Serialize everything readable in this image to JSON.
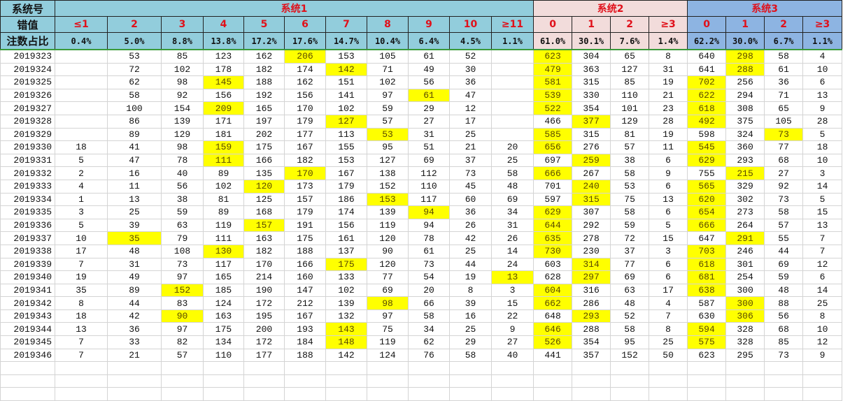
{
  "header": {
    "label_system": "系统号",
    "label_error": "错值",
    "label_ratio": "注数占比",
    "groups": [
      {
        "title": "系统1",
        "columns": [
          "≤1",
          "2",
          "3",
          "4",
          "5",
          "6",
          "7",
          "8",
          "9",
          "10",
          "≥11"
        ],
        "ratios": [
          "0.4%",
          "5.0%",
          "8.8%",
          "13.8%",
          "17.2%",
          "17.6%",
          "14.7%",
          "10.4%",
          "6.4%",
          "4.5%",
          "1.1%"
        ]
      },
      {
        "title": "系统2",
        "columns": [
          "0",
          "1",
          "2",
          "≥3"
        ],
        "ratios": [
          "61.0%",
          "30.1%",
          "7.6%",
          "1.4%"
        ]
      },
      {
        "title": "系统3",
        "columns": [
          "0",
          "1",
          "2",
          "≥3"
        ],
        "ratios": [
          "62.2%",
          "30.0%",
          "6.7%",
          "1.1%"
        ]
      }
    ]
  },
  "colors": {
    "header": "#92CDDC",
    "system2": "#F2DCDB",
    "system3": "#8DB4E2",
    "highlight": "#FFFF00",
    "header_text": "#E0101A"
  },
  "rows": [
    {
      "period": "2019323",
      "values": [
        "",
        53,
        85,
        123,
        162,
        206,
        153,
        105,
        61,
        52,
        "",
        623,
        304,
        65,
        8,
        640,
        298,
        58,
        4
      ],
      "highlight": [
        5,
        11,
        16
      ]
    },
    {
      "period": "2019324",
      "values": [
        "",
        72,
        102,
        178,
        182,
        174,
        142,
        71,
        49,
        30,
        "",
        479,
        363,
        127,
        31,
        641,
        288,
        61,
        10
      ],
      "highlight": [
        6,
        11,
        16
      ]
    },
    {
      "period": "2019325",
      "values": [
        "",
        62,
        98,
        145,
        188,
        162,
        151,
        102,
        56,
        36,
        "",
        581,
        315,
        85,
        19,
        702,
        256,
        36,
        6
      ],
      "highlight": [
        3,
        11,
        15
      ]
    },
    {
      "period": "2019326",
      "values": [
        "",
        58,
        92,
        156,
        192,
        156,
        141,
        97,
        61,
        47,
        "",
        539,
        330,
        110,
        21,
        622,
        294,
        71,
        13
      ],
      "highlight": [
        8,
        11,
        15
      ]
    },
    {
      "period": "2019327",
      "values": [
        "",
        100,
        154,
        209,
        165,
        170,
        102,
        59,
        29,
        12,
        "",
        522,
        354,
        101,
        23,
        618,
        308,
        65,
        9
      ],
      "highlight": [
        3,
        11,
        15
      ]
    },
    {
      "period": "2019328",
      "values": [
        "",
        86,
        139,
        171,
        197,
        179,
        127,
        57,
        27,
        17,
        "",
        466,
        377,
        129,
        28,
        492,
        375,
        105,
        28
      ],
      "highlight": [
        6,
        12,
        15
      ]
    },
    {
      "period": "2019329",
      "values": [
        "",
        89,
        129,
        181,
        202,
        177,
        113,
        53,
        31,
        25,
        "",
        585,
        315,
        81,
        19,
        598,
        324,
        73,
        5
      ],
      "highlight": [
        7,
        11,
        17
      ]
    },
    {
      "period": "2019330",
      "values": [
        18,
        41,
        98,
        159,
        175,
        167,
        155,
        95,
        51,
        21,
        20,
        656,
        276,
        57,
        11,
        545,
        360,
        77,
        18
      ],
      "highlight": [
        3,
        11,
        15
      ]
    },
    {
      "period": "2019331",
      "values": [
        5,
        47,
        78,
        111,
        166,
        182,
        153,
        127,
        69,
        37,
        25,
        697,
        259,
        38,
        6,
        629,
        293,
        68,
        10
      ],
      "highlight": [
        3,
        12,
        15
      ]
    },
    {
      "period": "2019332",
      "values": [
        2,
        16,
        40,
        89,
        135,
        170,
        167,
        138,
        112,
        73,
        58,
        666,
        267,
        58,
        9,
        755,
        215,
        27,
        3
      ],
      "highlight": [
        5,
        11,
        16
      ]
    },
    {
      "period": "2019333",
      "values": [
        4,
        11,
        56,
        102,
        120,
        173,
        179,
        152,
        110,
        45,
        48,
        701,
        240,
        53,
        6,
        565,
        329,
        92,
        14
      ],
      "highlight": [
        4,
        12,
        15
      ]
    },
    {
      "period": "2019334",
      "values": [
        1,
        13,
        38,
        81,
        125,
        157,
        186,
        153,
        117,
        60,
        69,
        597,
        315,
        75,
        13,
        620,
        302,
        73,
        5
      ],
      "highlight": [
        7,
        12,
        15
      ]
    },
    {
      "period": "2019335",
      "values": [
        3,
        25,
        59,
        89,
        168,
        179,
        174,
        139,
        94,
        36,
        34,
        629,
        307,
        58,
        6,
        654,
        273,
        58,
        15
      ],
      "highlight": [
        8,
        11,
        15
      ]
    },
    {
      "period": "2019336",
      "values": [
        5,
        39,
        63,
        119,
        157,
        191,
        156,
        119,
        94,
        26,
        31,
        644,
        292,
        59,
        5,
        666,
        264,
        57,
        13
      ],
      "highlight": [
        4,
        11,
        15
      ]
    },
    {
      "period": "2019337",
      "values": [
        10,
        35,
        79,
        111,
        163,
        175,
        161,
        120,
        78,
        42,
        26,
        635,
        278,
        72,
        15,
        647,
        291,
        55,
        7
      ],
      "highlight": [
        1,
        11,
        16
      ]
    },
    {
      "period": "2019338",
      "values": [
        17,
        48,
        108,
        130,
        182,
        188,
        137,
        90,
        61,
        25,
        14,
        730,
        230,
        37,
        3,
        703,
        246,
        44,
        7
      ],
      "highlight": [
        3,
        11,
        15
      ]
    },
    {
      "period": "2019339",
      "values": [
        7,
        31,
        73,
        117,
        170,
        166,
        175,
        120,
        73,
        44,
        24,
        603,
        314,
        77,
        6,
        618,
        301,
        69,
        12
      ],
      "highlight": [
        6,
        12,
        15
      ]
    },
    {
      "period": "2019340",
      "values": [
        19,
        49,
        97,
        165,
        214,
        160,
        133,
        77,
        54,
        19,
        13,
        628,
        297,
        69,
        6,
        681,
        254,
        59,
        6
      ],
      "highlight": [
        10,
        12,
        15
      ]
    },
    {
      "period": "2019341",
      "values": [
        35,
        89,
        152,
        185,
        190,
        147,
        102,
        69,
        20,
        8,
        3,
        604,
        316,
        63,
        17,
        638,
        300,
        48,
        14
      ],
      "highlight": [
        2,
        11,
        15
      ]
    },
    {
      "period": "2019342",
      "values": [
        8,
        44,
        83,
        124,
        172,
        212,
        139,
        98,
        66,
        39,
        15,
        662,
        286,
        48,
        4,
        587,
        300,
        88,
        25
      ],
      "highlight": [
        7,
        11,
        16
      ]
    },
    {
      "period": "2019343",
      "values": [
        18,
        42,
        90,
        163,
        195,
        167,
        132,
        97,
        58,
        16,
        22,
        648,
        293,
        52,
        7,
        630,
        306,
        56,
        8
      ],
      "highlight": [
        2,
        12,
        16
      ]
    },
    {
      "period": "2019344",
      "values": [
        13,
        36,
        97,
        175,
        200,
        193,
        143,
        75,
        34,
        25,
        9,
        646,
        288,
        58,
        8,
        594,
        328,
        68,
        10
      ],
      "highlight": [
        6,
        11,
        15
      ]
    },
    {
      "period": "2019345",
      "values": [
        7,
        33,
        82,
        134,
        172,
        184,
        148,
        119,
        62,
        29,
        27,
        526,
        354,
        95,
        25,
        575,
        328,
        85,
        12
      ],
      "highlight": [
        6,
        11,
        15
      ]
    },
    {
      "period": "2019346",
      "values": [
        7,
        21,
        57,
        110,
        177,
        188,
        142,
        124,
        76,
        58,
        40,
        441,
        357,
        152,
        50,
        623,
        295,
        73,
        9
      ],
      "highlight": []
    }
  ]
}
